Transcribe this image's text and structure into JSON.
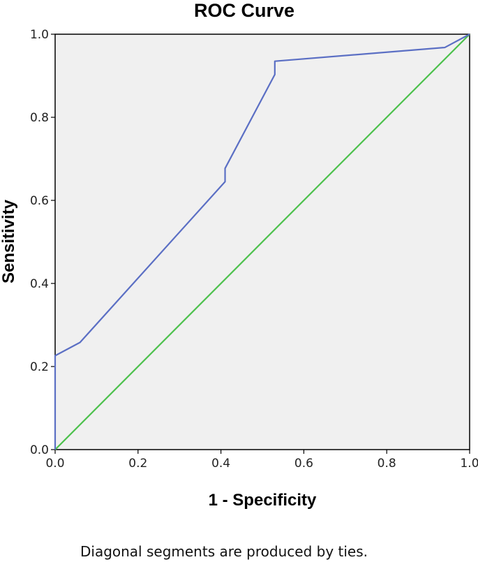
{
  "chart_data": {
    "type": "line",
    "title": "ROC Curve",
    "xlabel": "1 - Specificity",
    "ylabel": "Sensitivity",
    "xlim": [
      0.0,
      1.0
    ],
    "ylim": [
      0.0,
      1.0
    ],
    "x_ticks": [
      "0.0",
      "0.2",
      "0.4",
      "0.6",
      "0.8",
      "1.0"
    ],
    "y_ticks": [
      "0.0",
      "0.2",
      "0.4",
      "0.6",
      "0.8",
      "1.0"
    ],
    "grid": false,
    "footnote": "Diagonal segments are produced by ties.",
    "colors": {
      "plot_background": "#f0f0f0",
      "roc_curve": "#5b6fc4",
      "reference_line": "#4cc14c"
    },
    "series": [
      {
        "x": [
          0.0,
          0.0,
          0.06,
          0.41,
          0.41,
          0.53,
          0.53,
          0.94,
          1.0
        ],
        "y": [
          0.0,
          0.226,
          0.258,
          0.645,
          0.677,
          0.903,
          0.935,
          0.968,
          1.0
        ]
      },
      {
        "x": [
          0.0,
          1.0
        ],
        "y": [
          0.0,
          1.0
        ]
      }
    ]
  }
}
